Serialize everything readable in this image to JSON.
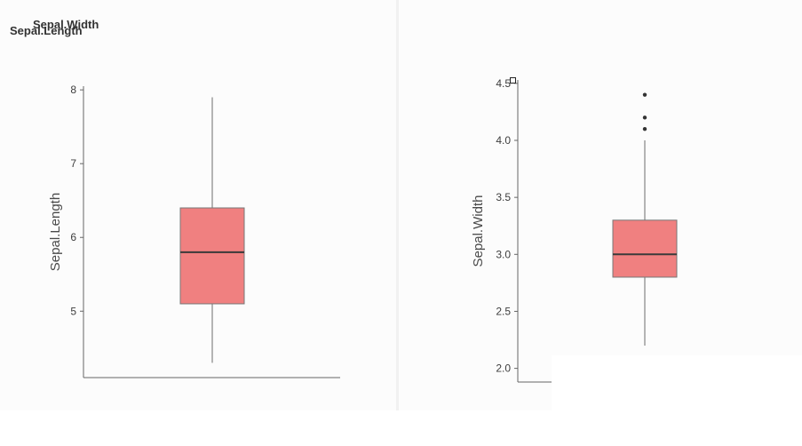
{
  "chart_data": [
    {
      "type": "box",
      "panel_title": "Sepal.Length",
      "ylabel": "Sepal.Length",
      "xlabel": "",
      "yticks": [
        "5",
        "6",
        "7",
        "8"
      ],
      "ylim": [
        4.1,
        8.05
      ],
      "box": {
        "min": 4.3,
        "q1": 5.1,
        "median": 5.8,
        "q3": 6.4,
        "max": 7.9
      },
      "outliers": [],
      "fill_color": "#f08080"
    },
    {
      "type": "box",
      "panel_title": "Sepal.Width",
      "ylabel": "Sepal.Width",
      "xlabel": "",
      "yticks": [
        "2.0",
        "2.5",
        "3.0",
        "3.5",
        "4.0",
        "4.5"
      ],
      "ylim": [
        1.88,
        4.53
      ],
      "box": {
        "min": 2.2,
        "q1": 2.8,
        "median": 3.0,
        "q3": 3.3,
        "max": 4.0
      },
      "outliers": [
        4.1,
        4.2,
        4.4
      ],
      "fill_color": "#f08080"
    }
  ]
}
